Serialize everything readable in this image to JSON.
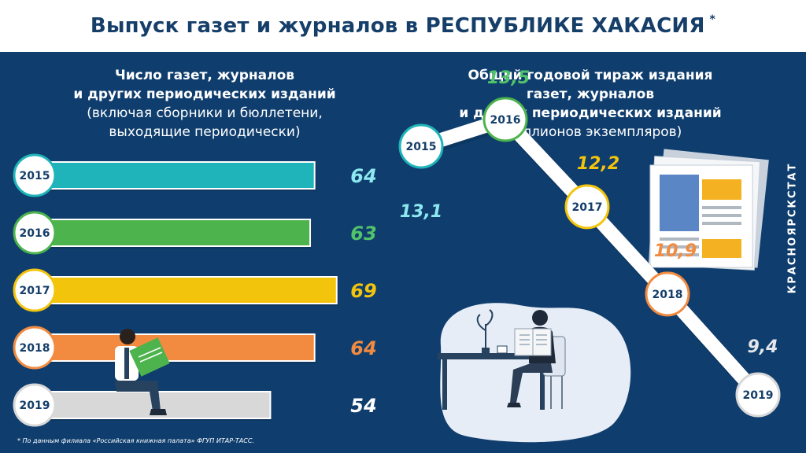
{
  "title": "Выпуск газет и журналов в РЕСПУБЛИКЕ ХАКАСИЯ",
  "title_mark": "*",
  "left_title": {
    "line1": "Число газет, журналов",
    "line2": "и других периодических изданий",
    "line3": "(включая сборники и бюллетени,",
    "line4": "выходящие периодически)"
  },
  "right_title": {
    "line1": "Общий годовой тираж издания",
    "line2": "газет, журналов",
    "line3": "и других периодических изданий",
    "line4": "(миллионов экземпляров)"
  },
  "footnote": "* По данным филиала «Российская книжная палата» ФГУП ИТАР-ТАСС.",
  "brand": "КРАСНОЯРСКСТАТ",
  "chart_data": [
    {
      "type": "bar",
      "orientation": "horizontal",
      "categories": [
        "2015",
        "2016",
        "2017",
        "2018",
        "2019"
      ],
      "values": [
        64,
        63,
        69,
        64,
        54
      ],
      "labels": [
        "64",
        "63",
        "69",
        "64",
        "54"
      ],
      "colors": [
        "#1fb4b9",
        "#4db34d",
        "#f3c40c",
        "#f28b40",
        "#d8d8d8"
      ],
      "value_label_colors": [
        "#8ee8f0",
        "#52c36a",
        "#f3c40c",
        "#f28b40",
        "#ffffff"
      ]
    },
    {
      "type": "line",
      "x": [
        "2015",
        "2016",
        "2017",
        "2018",
        "2019"
      ],
      "values": [
        13.1,
        13.5,
        12.2,
        10.9,
        9.4
      ],
      "labels": [
        "13,1",
        "13,5",
        "12,2",
        "10,9",
        "9,4"
      ],
      "ring_colors": [
        "#1fb4b9",
        "#4db34d",
        "#f3c40c",
        "#f28b40",
        "#d8d8d8"
      ],
      "label_colors": [
        "#8ee8f0",
        "#52c36a",
        "#f3c40c",
        "#f28b40",
        "#e3e6ea"
      ]
    }
  ]
}
